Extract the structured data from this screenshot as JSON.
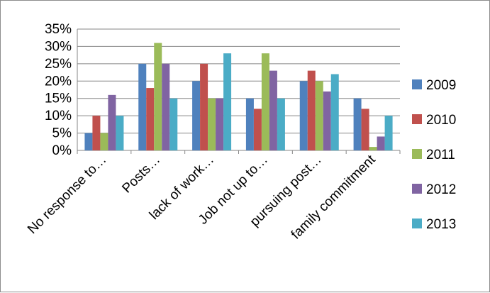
{
  "chart_data": {
    "type": "bar",
    "title": "",
    "xlabel": "",
    "ylabel": "",
    "ylim": [
      0,
      0.35
    ],
    "yticks": [
      "0%",
      "5%",
      "10%",
      "15%",
      "20%",
      "25%",
      "30%",
      "35%"
    ],
    "grid": true,
    "legend_position": "right",
    "categories": [
      "No response to…",
      "Posts…",
      "lack of work…",
      "Job not up to…",
      "pursuing post…",
      "family commitment"
    ],
    "series": [
      {
        "name": "2009",
        "color": "#4f81bd",
        "values": [
          0.05,
          0.25,
          0.2,
          0.15,
          0.2,
          0.15
        ]
      },
      {
        "name": "2010",
        "color": "#c0504d",
        "values": [
          0.1,
          0.18,
          0.25,
          0.12,
          0.23,
          0.12
        ]
      },
      {
        "name": "2011",
        "color": "#9bbb59",
        "values": [
          0.05,
          0.31,
          0.15,
          0.28,
          0.2,
          0.01
        ]
      },
      {
        "name": "2012",
        "color": "#8064a2",
        "values": [
          0.16,
          0.25,
          0.15,
          0.23,
          0.17,
          0.04
        ]
      },
      {
        "name": "2013",
        "color": "#4bacc6",
        "values": [
          0.1,
          0.15,
          0.28,
          0.15,
          0.22,
          0.1
        ]
      }
    ]
  }
}
